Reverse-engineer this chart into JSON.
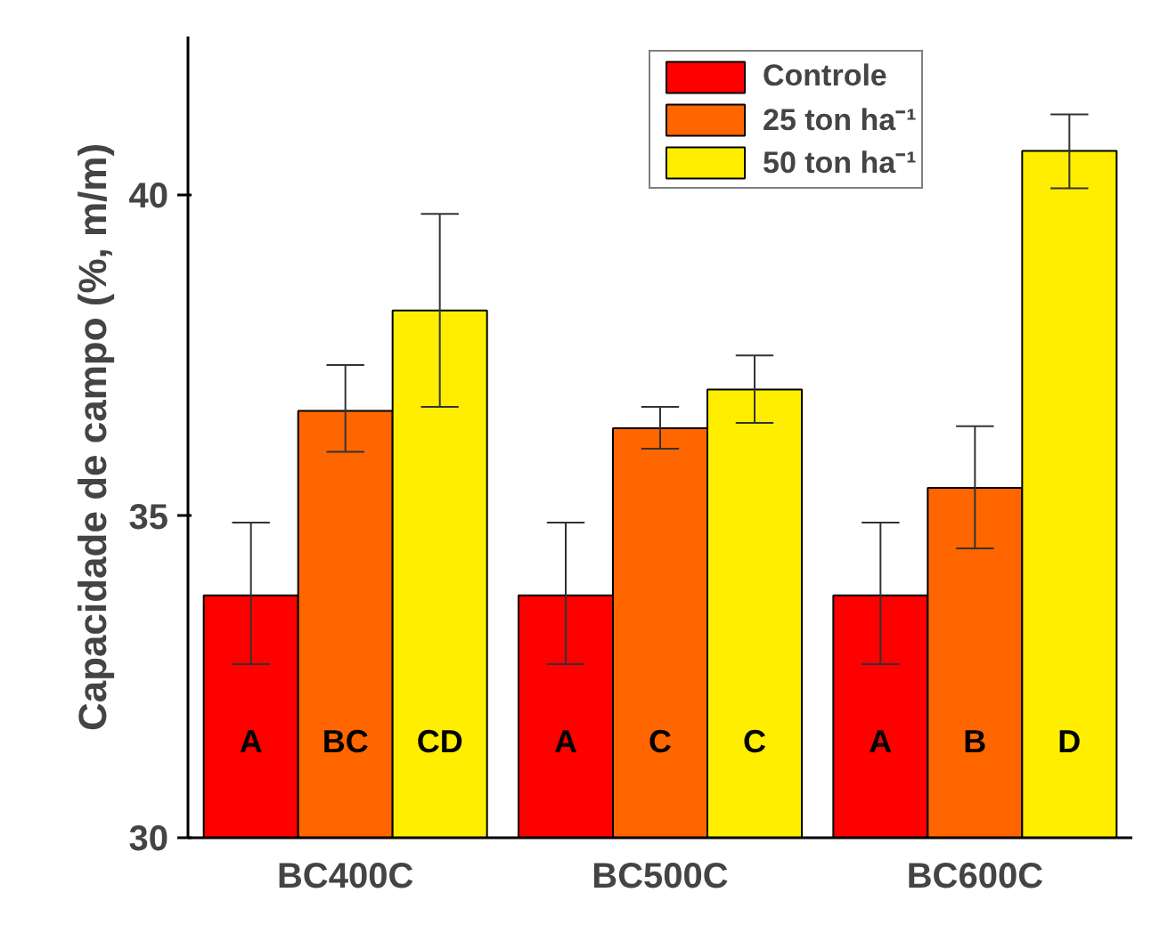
{
  "chart_data": {
    "type": "bar",
    "ylabel": "Capacidade de campo (%, m/m)",
    "categories": [
      "BC400C",
      "BC500C",
      "BC600C"
    ],
    "series": [
      {
        "name": "Controle",
        "color": "#ff0000",
        "values": [
          33.77,
          33.77,
          33.77
        ],
        "errors": [
          [
            32.7,
            34.9
          ],
          [
            32.7,
            34.9
          ],
          [
            32.7,
            34.9
          ]
        ]
      },
      {
        "name": "25 ton ha⁻¹",
        "color": "#ff6600",
        "values": [
          36.64,
          36.37,
          35.44
        ],
        "errors": [
          [
            36.0,
            37.35
          ],
          [
            36.05,
            36.7
          ],
          [
            34.5,
            36.4
          ]
        ]
      },
      {
        "name": "50 ton ha⁻¹",
        "color": "#ffee00",
        "values": [
          38.2,
          36.97,
          40.68
        ],
        "errors": [
          [
            36.7,
            39.7
          ],
          [
            36.45,
            37.5
          ],
          [
            40.1,
            41.25
          ]
        ]
      }
    ],
    "annotations": [
      "A",
      "BC",
      "CD",
      "A",
      "C",
      "C",
      "A",
      "B",
      "D"
    ],
    "ylim": [
      30,
      42.46
    ],
    "yticks": [
      30,
      35,
      40
    ],
    "grid": false,
    "legend": "top right"
  }
}
